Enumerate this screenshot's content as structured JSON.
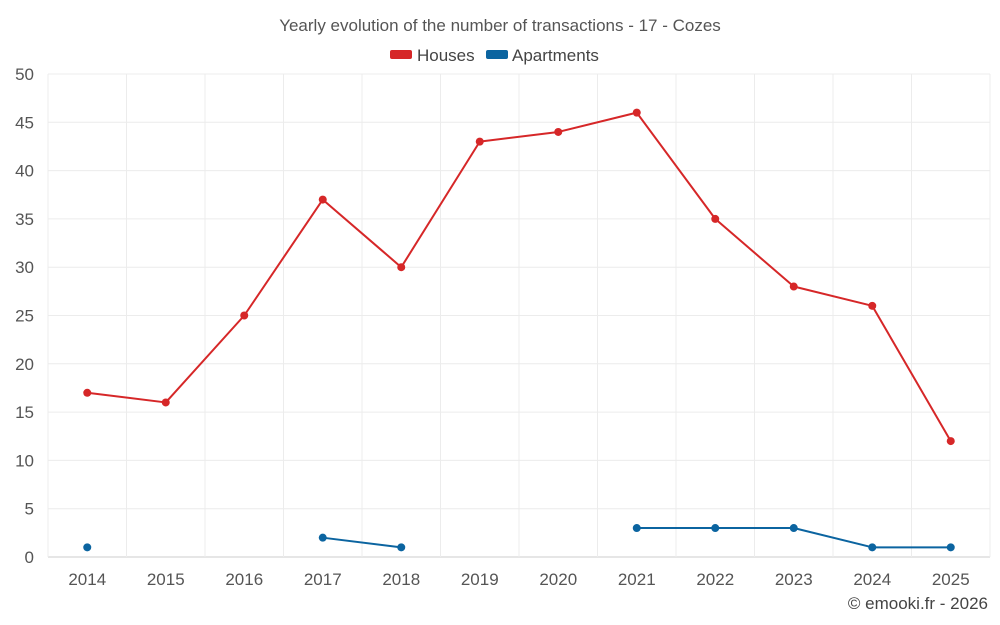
{
  "chart_data": {
    "type": "line",
    "title": "Yearly evolution of the number of transactions - 17 - Cozes",
    "categories": [
      "2014",
      "2015",
      "2016",
      "2017",
      "2018",
      "2019",
      "2020",
      "2021",
      "2022",
      "2023",
      "2024",
      "2025"
    ],
    "ylim": [
      0,
      50
    ],
    "yticks": [
      "0",
      "5",
      "10",
      "15",
      "20",
      "25",
      "30",
      "35",
      "40",
      "45",
      "50"
    ],
    "grid": true,
    "legend_position": "top-center",
    "series": [
      {
        "name": "Houses",
        "color": "#d62728",
        "values": [
          17,
          16,
          25,
          37,
          30,
          43,
          44,
          46,
          35,
          28,
          26,
          12
        ]
      },
      {
        "name": "Apartments",
        "color": "#0b64a0",
        "values": [
          1,
          null,
          null,
          2,
          1,
          null,
          null,
          3,
          3,
          3,
          1,
          1
        ]
      }
    ]
  },
  "credit": "© emooki.fr - 2026"
}
